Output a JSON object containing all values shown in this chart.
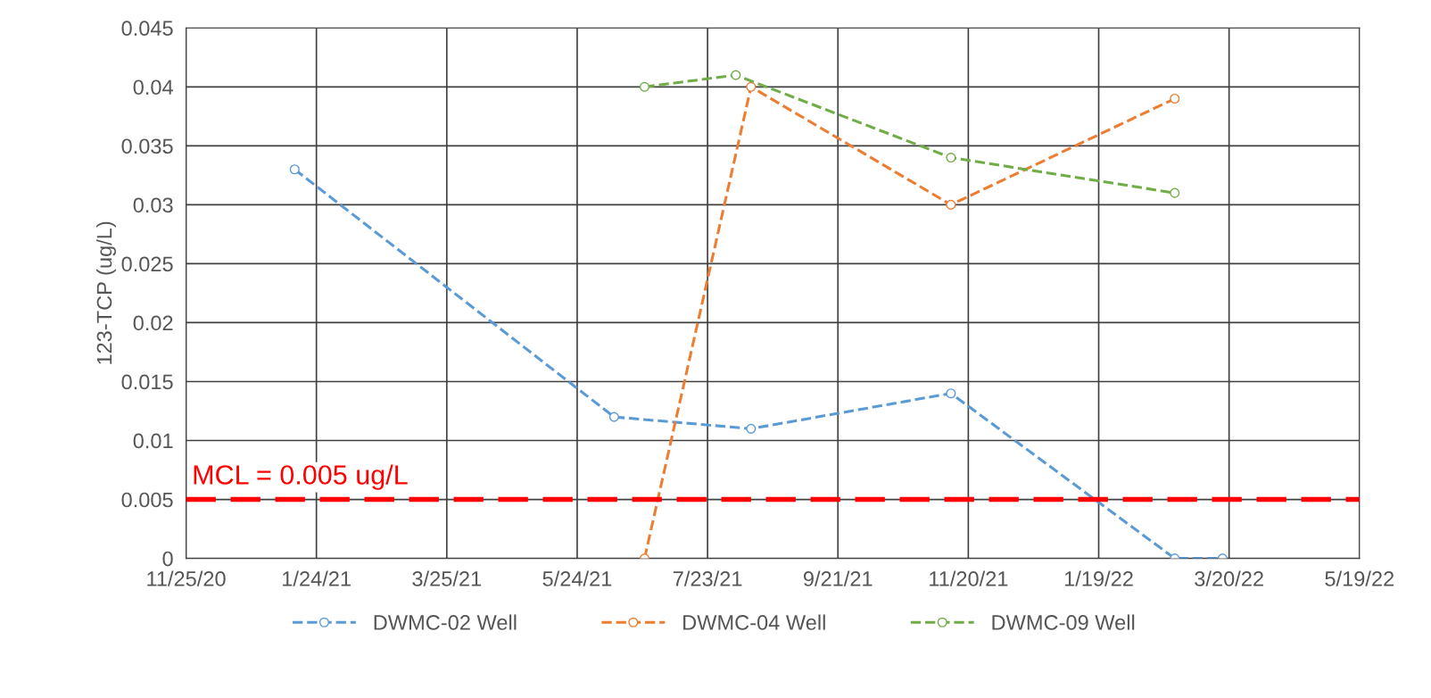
{
  "chart_data": {
    "type": "line",
    "ylabel": "123-TCP (ug/L)",
    "series": [
      {
        "name": "DWMC-02 Well",
        "color": "#5b9bd5",
        "x": [
          "2021-01-14",
          "2021-06-10",
          "2021-08-12",
          "2021-11-12",
          "2022-02-23",
          "2022-03-17"
        ],
        "values": [
          0.033,
          0.012,
          0.011,
          0.014,
          0,
          0
        ]
      },
      {
        "name": "DWMC-04 Well",
        "color": "#ed7d31",
        "x": [
          "2021-06-24",
          "2021-08-12",
          "2021-11-12",
          "2022-02-23"
        ],
        "values": [
          0,
          0.04,
          0.03,
          0.039
        ]
      },
      {
        "name": "DWMC-09 Well",
        "color": "#70ad47",
        "x": [
          "2021-06-24",
          "2021-08-05",
          "2021-11-12",
          "2022-02-23"
        ],
        "values": [
          0.04,
          0.041,
          0.034,
          0.031
        ]
      }
    ],
    "xlim": [
      "2020-11-25",
      "2022-05-19"
    ],
    "xticks": [
      {
        "value": "2020-11-25",
        "label": "11/25/20"
      },
      {
        "value": "2021-01-24",
        "label": "1/24/21"
      },
      {
        "value": "2021-03-25",
        "label": "3/25/21"
      },
      {
        "value": "2021-05-24",
        "label": "5/24/21"
      },
      {
        "value": "2021-07-23",
        "label": "7/23/21"
      },
      {
        "value": "2021-09-21",
        "label": "9/21/21"
      },
      {
        "value": "2021-11-20",
        "label": "11/20/21"
      },
      {
        "value": "2022-01-19",
        "label": "1/19/22"
      },
      {
        "value": "2022-03-20",
        "label": "3/20/22"
      },
      {
        "value": "2022-05-19",
        "label": "5/19/22"
      }
    ],
    "ylim": [
      0,
      0.045
    ],
    "yticks": [
      0,
      0.005,
      0.01,
      0.015,
      0.02,
      0.025,
      0.03,
      0.035,
      0.04,
      0.045
    ],
    "ref_lines": [
      {
        "axis": "y",
        "value": 0.005,
        "label": "MCL = 0.005 ug/L",
        "color": "#ff0000",
        "line_style": "dashed"
      }
    ],
    "grid": true,
    "legend": "bottom",
    "marker": "circle",
    "line_style": "dashed"
  }
}
